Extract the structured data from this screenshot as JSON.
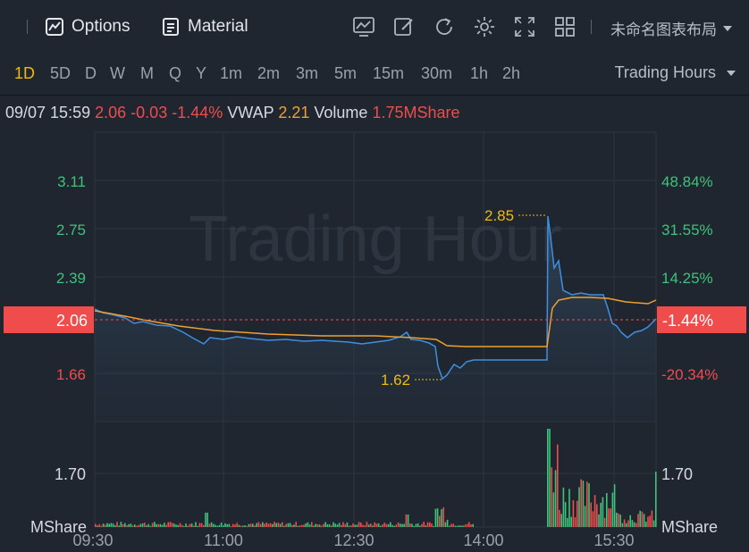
{
  "toolbar": {
    "options_label": "Options",
    "material_label": "Material",
    "layout_label": "未命名图表布局"
  },
  "periods": [
    "1D",
    "5D",
    "D",
    "W",
    "M",
    "Q",
    "Y",
    "1m",
    "2m",
    "3m",
    "5m",
    "15m",
    "30m",
    "1h",
    "2h"
  ],
  "active_period": "1D",
  "trading_hours_label": "Trading Hours",
  "info": {
    "datetime": "09/07 15:59",
    "price": "2.06",
    "change": "-0.03",
    "change_pct": "-1.44%",
    "vwap_label": "VWAP",
    "vwap_value": "2.21",
    "volume_label": "Volume",
    "volume_value": "1.75MShare"
  },
  "watermark": "Trading Hour",
  "colors": {
    "up": "#3fc27a",
    "down": "#f04c4c",
    "price_line": "#3f8fe0",
    "vwap_line": "#f0a030",
    "accent": "#f0b90b"
  },
  "chart_data": {
    "type": "line",
    "price_axis_left": [
      "3.11",
      "2.75",
      "2.39",
      "2.06",
      "1.66"
    ],
    "price_axis_right": [
      "48.84%",
      "31.55%",
      "14.25%",
      "-1.44%",
      "-20.34%"
    ],
    "current_price_label": "2.06",
    "current_pct_label": "-1.44%",
    "high_label": "2.85",
    "low_label": "1.62",
    "volume_axis_value": "1.70",
    "volume_unit": "MShare",
    "x_ticks": [
      "09:30",
      "11:00",
      "12:30",
      "14:00",
      "15:30"
    ]
  }
}
